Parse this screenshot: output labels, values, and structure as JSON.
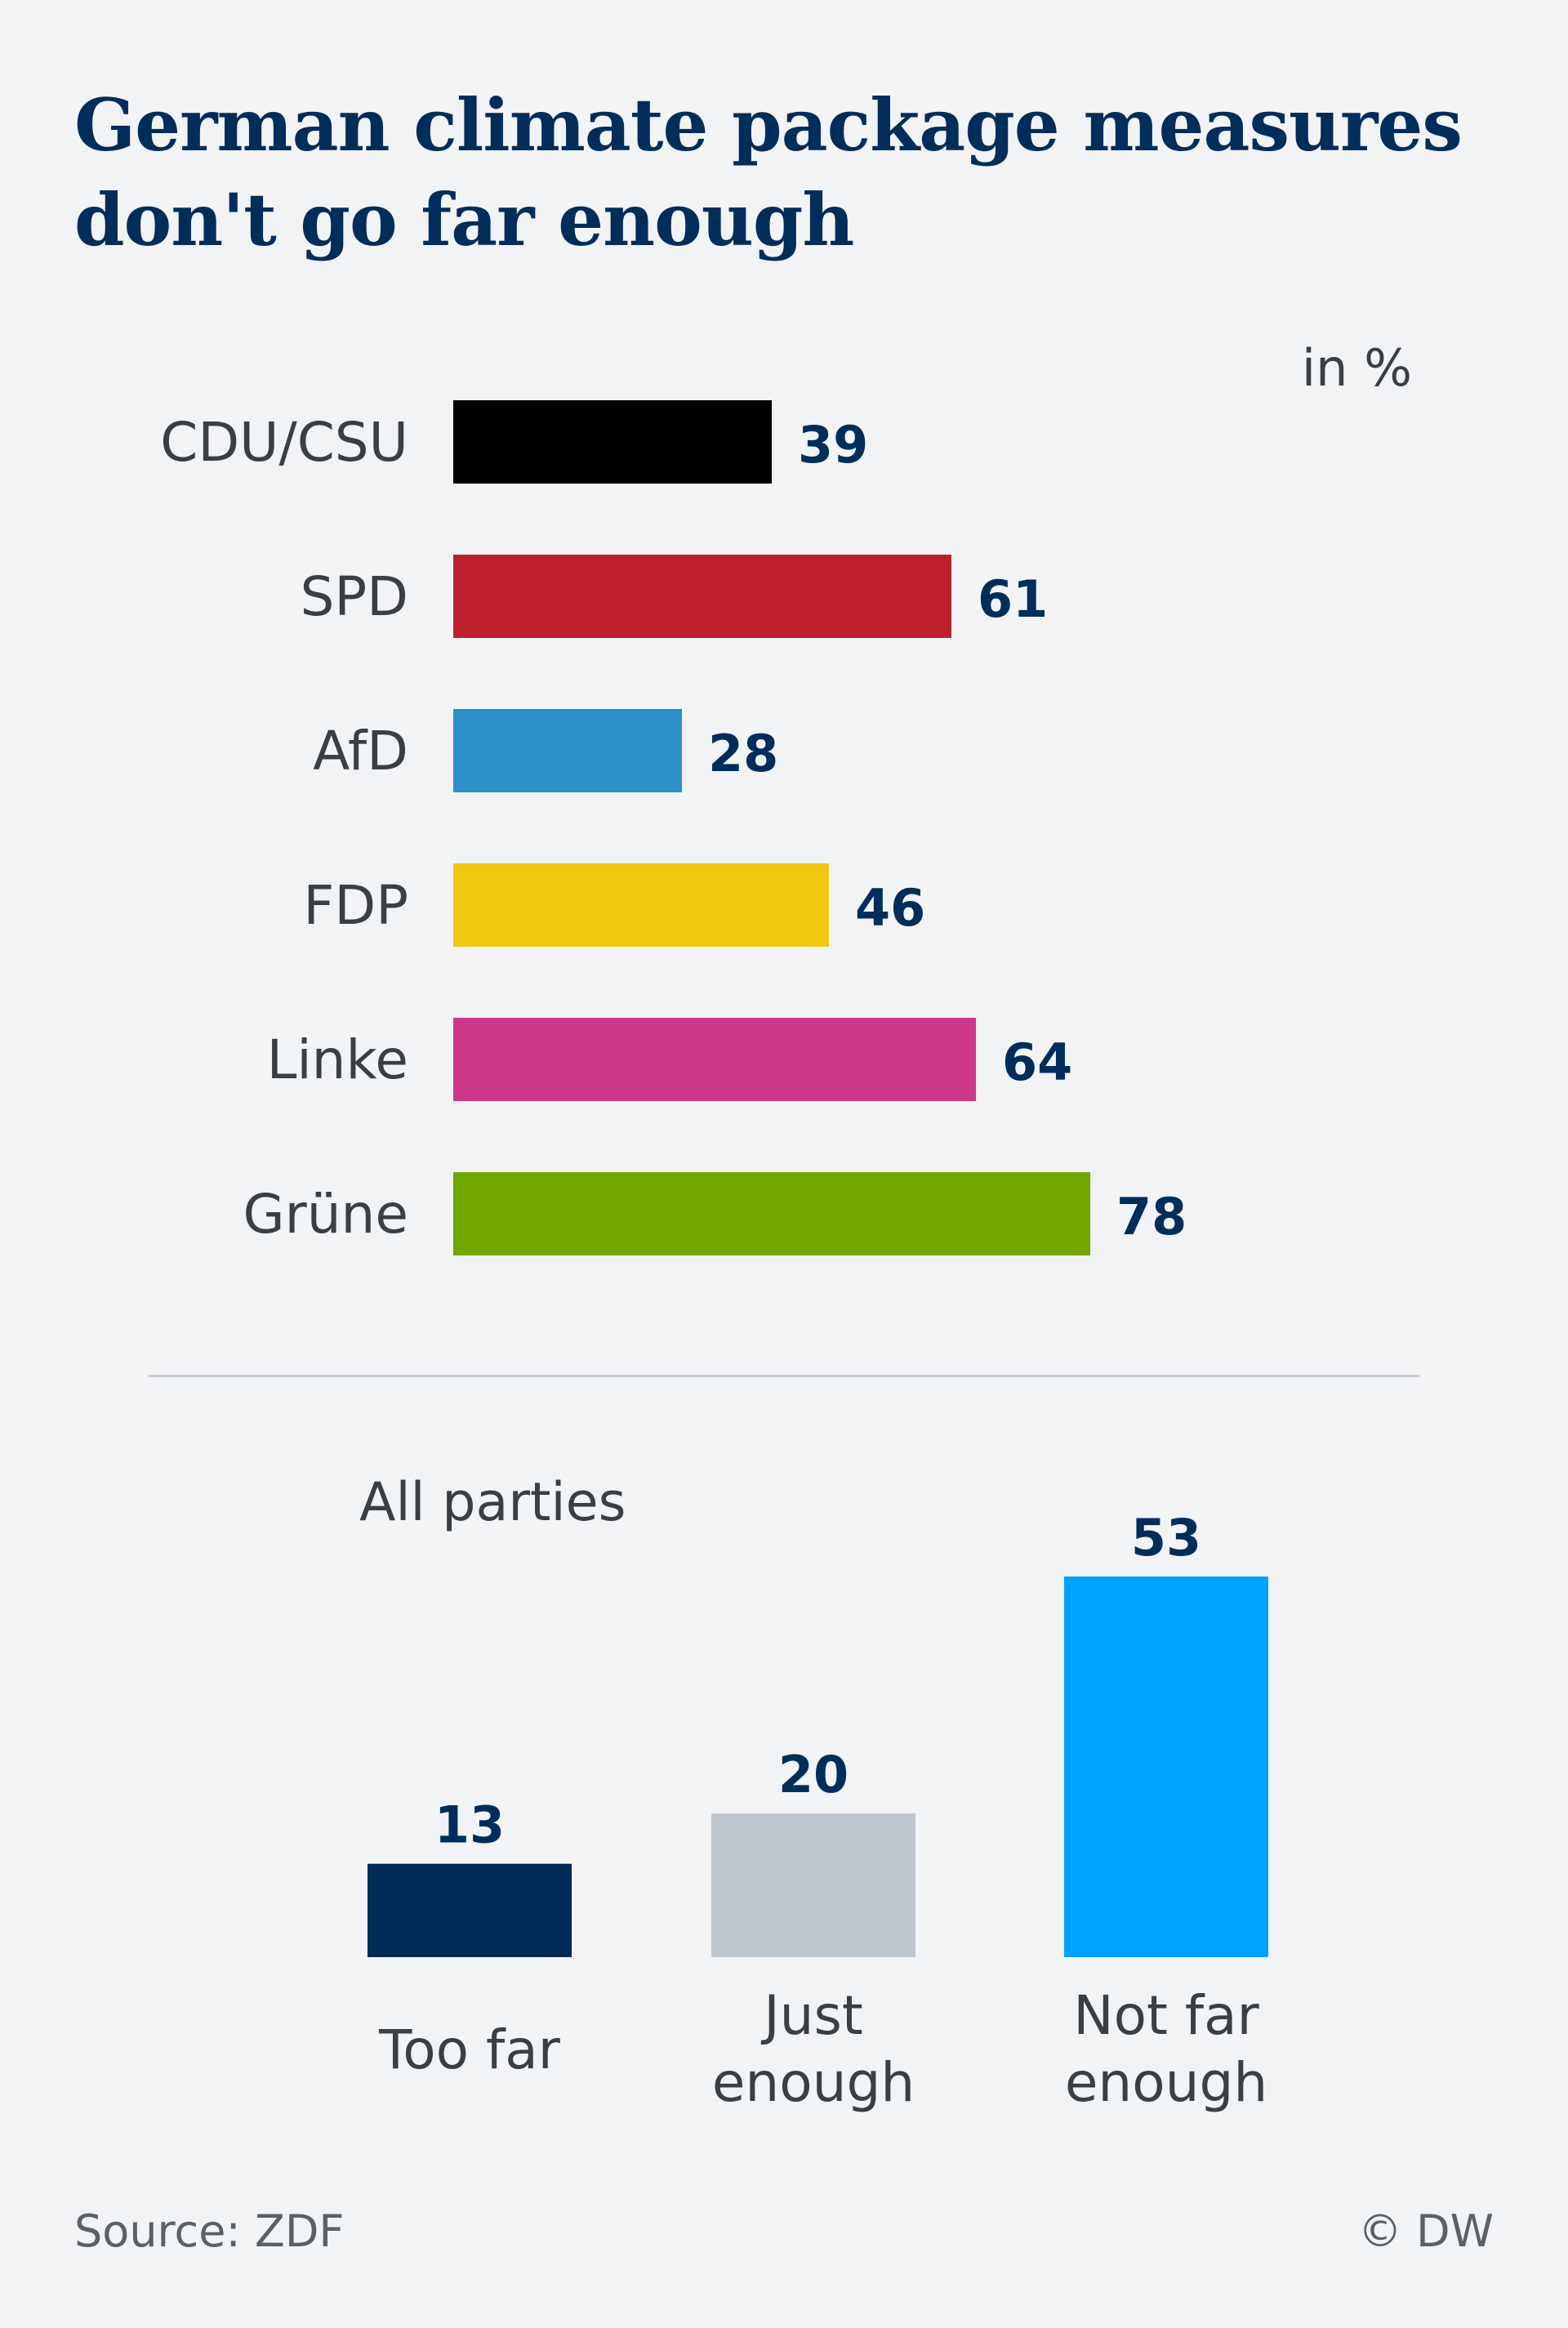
{
  "title": "German climate package measures don't go far enough",
  "source": "Source: ZDF",
  "credit": "© DW",
  "chart_data": [
    {
      "type": "bar",
      "orientation": "horizontal",
      "unit": "in %",
      "categories": [
        "CDU/CSU",
        "SPD",
        "AfD",
        "FDP",
        "Linke",
        "Grüne"
      ],
      "values": [
        39,
        61,
        28,
        46,
        64,
        78
      ],
      "colors": [
        "#000000",
        "#be202e",
        "#2b8fc9",
        "#f0c80f",
        "#cd378a",
        "#72a600"
      ],
      "xlim": [
        0,
        100
      ],
      "grid": false,
      "legend": "none"
    },
    {
      "type": "bar",
      "orientation": "vertical",
      "subtitle": "All parties",
      "categories": [
        "Too far",
        "Just enough",
        "Not far enough"
      ],
      "category_lines": [
        [
          "Too far"
        ],
        [
          "Just",
          "enough"
        ],
        [
          "Not far",
          "enough"
        ]
      ],
      "values": [
        13,
        20,
        53
      ],
      "colors": [
        "#002b57",
        "#bfc6ce",
        "#00a2ff"
      ],
      "ylim": [
        0,
        53
      ],
      "grid": false,
      "legend": "none"
    }
  ]
}
